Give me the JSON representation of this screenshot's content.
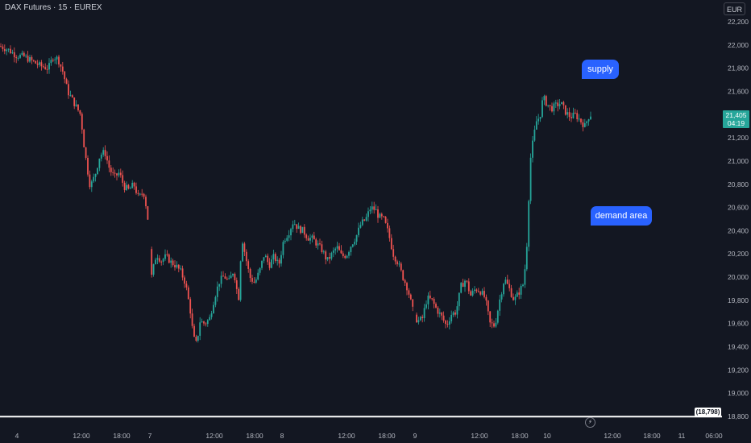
{
  "symbol": {
    "title": "DAX Futures · 15 · EUREX"
  },
  "currency": "EUR",
  "last_price": {
    "value": "21,405",
    "countdown": "04:19"
  },
  "low_marker": "(18,798)",
  "annotations": {
    "supply": "supply",
    "demand": "demand area"
  },
  "colors": {
    "background": "#131722",
    "up": "#26a69a",
    "down": "#ef5350",
    "text": "#b2b5be",
    "callout": "#2962ff"
  },
  "chart_data": {
    "type": "candlestick",
    "title": "",
    "xlabel": "",
    "ylabel": "",
    "ylim": [
      18800,
      22200
    ],
    "y_ticks": [
      22200,
      22000,
      21800,
      21600,
      21400,
      21200,
      21000,
      20800,
      20600,
      20400,
      20200,
      20000,
      19800,
      19600,
      19400,
      19200,
      19000,
      18800
    ],
    "y_tick_labels": [
      "22,200",
      "22,000",
      "21,800",
      "21,600",
      "21,400",
      "21,200",
      "21,000",
      "20,800",
      "20,600",
      "20,400",
      "20,200",
      "20,000",
      "19,800",
      "19,600",
      "19,400",
      "19,200",
      "19,000",
      "18,800"
    ],
    "x_tick_labels": [
      "4",
      "12:00",
      "18:00",
      "7",
      "12:00",
      "18:00",
      "8",
      "12:00",
      "18:00",
      "9",
      "12:00",
      "18:00",
      "10",
      "12:00",
      "18:00",
      "11",
      "06:00"
    ],
    "horizontal_line": {
      "value": 18798,
      "label": "(18,798)"
    },
    "grid": false,
    "series": [
      {
        "close_path": [
          [
            0,
            21990
          ],
          [
            10,
            21960
          ],
          [
            20,
            21910
          ],
          [
            30,
            21900
          ],
          [
            40,
            21860
          ],
          [
            50,
            21820
          ],
          [
            60,
            21800
          ],
          [
            66,
            21900
          ],
          [
            72,
            21880
          ],
          [
            78,
            21770
          ],
          [
            84,
            21600
          ],
          [
            92,
            21500
          ],
          [
            100,
            21400
          ],
          [
            104,
            21150
          ],
          [
            108,
            20950
          ],
          [
            112,
            20780
          ],
          [
            118,
            20880
          ],
          [
            124,
            21050
          ],
          [
            130,
            21080
          ],
          [
            136,
            20930
          ],
          [
            142,
            20860
          ],
          [
            148,
            20900
          ],
          [
            154,
            20780
          ],
          [
            160,
            20750
          ],
          [
            166,
            20800
          ],
          [
            172,
            20680
          ],
          [
            178,
            20740
          ],
          [
            183,
            20550
          ],
          [
            188,
            20000
          ],
          [
            194,
            20200
          ],
          [
            200,
            20140
          ],
          [
            206,
            20180
          ],
          [
            212,
            20130
          ],
          [
            218,
            20100
          ],
          [
            224,
            20050
          ],
          [
            230,
            19950
          ],
          [
            236,
            19720
          ],
          [
            240,
            19480
          ],
          [
            244,
            19420
          ],
          [
            248,
            19620
          ],
          [
            254,
            19600
          ],
          [
            260,
            19640
          ],
          [
            266,
            19820
          ],
          [
            272,
            19960
          ],
          [
            278,
            20010
          ],
          [
            284,
            19960
          ],
          [
            290,
            20060
          ],
          [
            296,
            19800
          ],
          [
            300,
            20350
          ],
          [
            304,
            20200
          ],
          [
            310,
            20000
          ],
          [
            316,
            19950
          ],
          [
            322,
            20050
          ],
          [
            328,
            20200
          ],
          [
            334,
            20100
          ],
          [
            340,
            20180
          ],
          [
            346,
            20100
          ],
          [
            352,
            20320
          ],
          [
            358,
            20380
          ],
          [
            364,
            20480
          ],
          [
            370,
            20420
          ],
          [
            376,
            20400
          ],
          [
            382,
            20340
          ],
          [
            388,
            20330
          ],
          [
            394,
            20280
          ],
          [
            400,
            20230
          ],
          [
            406,
            20140
          ],
          [
            412,
            20200
          ],
          [
            418,
            20260
          ],
          [
            424,
            20180
          ],
          [
            430,
            20190
          ],
          [
            436,
            20280
          ],
          [
            442,
            20350
          ],
          [
            448,
            20460
          ],
          [
            454,
            20500
          ],
          [
            460,
            20600
          ],
          [
            466,
            20580
          ],
          [
            470,
            20520
          ],
          [
            476,
            20500
          ],
          [
            482,
            20380
          ],
          [
            488,
            20200
          ],
          [
            494,
            20120
          ],
          [
            500,
            20000
          ],
          [
            506,
            19900
          ],
          [
            512,
            19720
          ],
          [
            518,
            19620
          ],
          [
            524,
            19640
          ],
          [
            530,
            19820
          ],
          [
            536,
            19800
          ],
          [
            542,
            19720
          ],
          [
            548,
            19660
          ],
          [
            554,
            19580
          ],
          [
            560,
            19680
          ],
          [
            566,
            19700
          ],
          [
            572,
            19920
          ],
          [
            578,
            19980
          ],
          [
            584,
            19840
          ],
          [
            590,
            19900
          ],
          [
            596,
            19880
          ],
          [
            602,
            19820
          ],
          [
            608,
            19600
          ],
          [
            614,
            19580
          ],
          [
            620,
            19800
          ],
          [
            626,
            19990
          ],
          [
            632,
            19900
          ],
          [
            638,
            19800
          ],
          [
            644,
            19870
          ],
          [
            650,
            19950
          ],
          [
            654,
            20300
          ],
          [
            658,
            21000
          ],
          [
            662,
            21200
          ],
          [
            666,
            21350
          ],
          [
            670,
            21380
          ],
          [
            674,
            21550
          ],
          [
            678,
            21500
          ],
          [
            684,
            21450
          ],
          [
            690,
            21480
          ],
          [
            696,
            21500
          ],
          [
            702,
            21420
          ],
          [
            708,
            21380
          ],
          [
            714,
            21400
          ],
          [
            720,
            21350
          ],
          [
            726,
            21300
          ],
          [
            730,
            21380
          ],
          [
            734,
            21405
          ]
        ]
      }
    ]
  }
}
